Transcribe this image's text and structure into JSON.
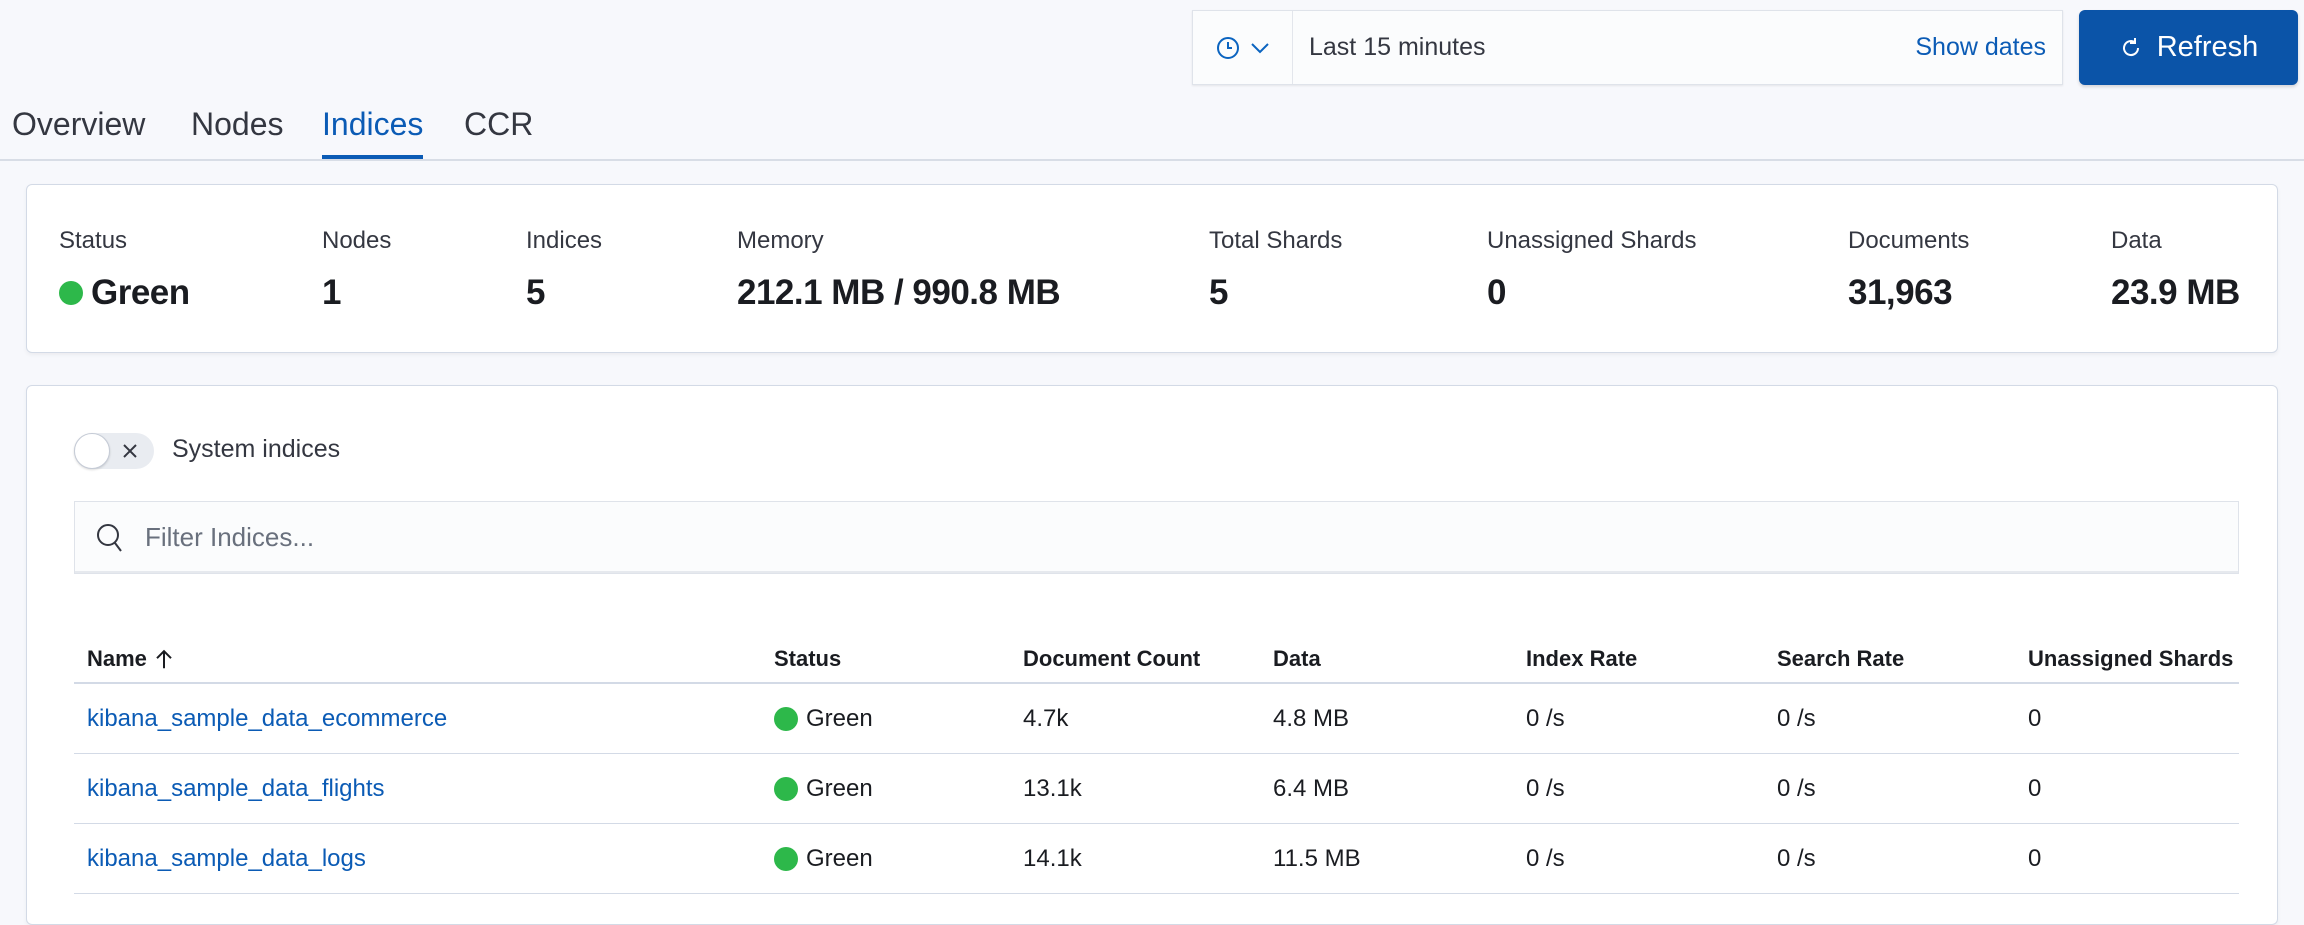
{
  "datepicker": {
    "range": "Last 15 minutes",
    "show_dates": "Show dates",
    "refresh": "Refresh"
  },
  "tabs": [
    {
      "label": "Overview"
    },
    {
      "label": "Nodes"
    },
    {
      "label": "Indices",
      "active": true
    },
    {
      "label": "CCR"
    }
  ],
  "summary": [
    {
      "label": "Status",
      "value": "Green"
    },
    {
      "label": "Nodes",
      "value": "1"
    },
    {
      "label": "Indices",
      "value": "5"
    },
    {
      "label": "Memory",
      "value": "212.1 MB / 990.8 MB"
    },
    {
      "label": "Total Shards",
      "value": "5"
    },
    {
      "label": "Unassigned Shards",
      "value": "0"
    },
    {
      "label": "Documents",
      "value": "31,963"
    },
    {
      "label": "Data",
      "value": "23.9 MB"
    }
  ],
  "system_indices": {
    "label": "System indices",
    "enabled": false
  },
  "filter": {
    "placeholder": "Filter Indices...",
    "value": ""
  },
  "table": {
    "columns": [
      "Name",
      "Status",
      "Document Count",
      "Data",
      "Index Rate",
      "Search Rate",
      "Unassigned Shards"
    ],
    "sort": {
      "column": "Name",
      "direction": "asc"
    },
    "rows": [
      [
        "kibana_sample_data_ecommerce",
        "Green",
        "4.7k",
        "4.8 MB",
        "0 /s",
        "0 /s",
        "0"
      ],
      [
        "kibana_sample_data_flights",
        "Green",
        "13.1k",
        "6.4 MB",
        "0 /s",
        "0 /s",
        "0"
      ],
      [
        "kibana_sample_data_logs",
        "Green",
        "14.1k",
        "11.5 MB",
        "0 /s",
        "0 /s",
        "0"
      ]
    ]
  },
  "colors": {
    "accent": "#0b5bb5",
    "status_green": "#2db84a"
  }
}
